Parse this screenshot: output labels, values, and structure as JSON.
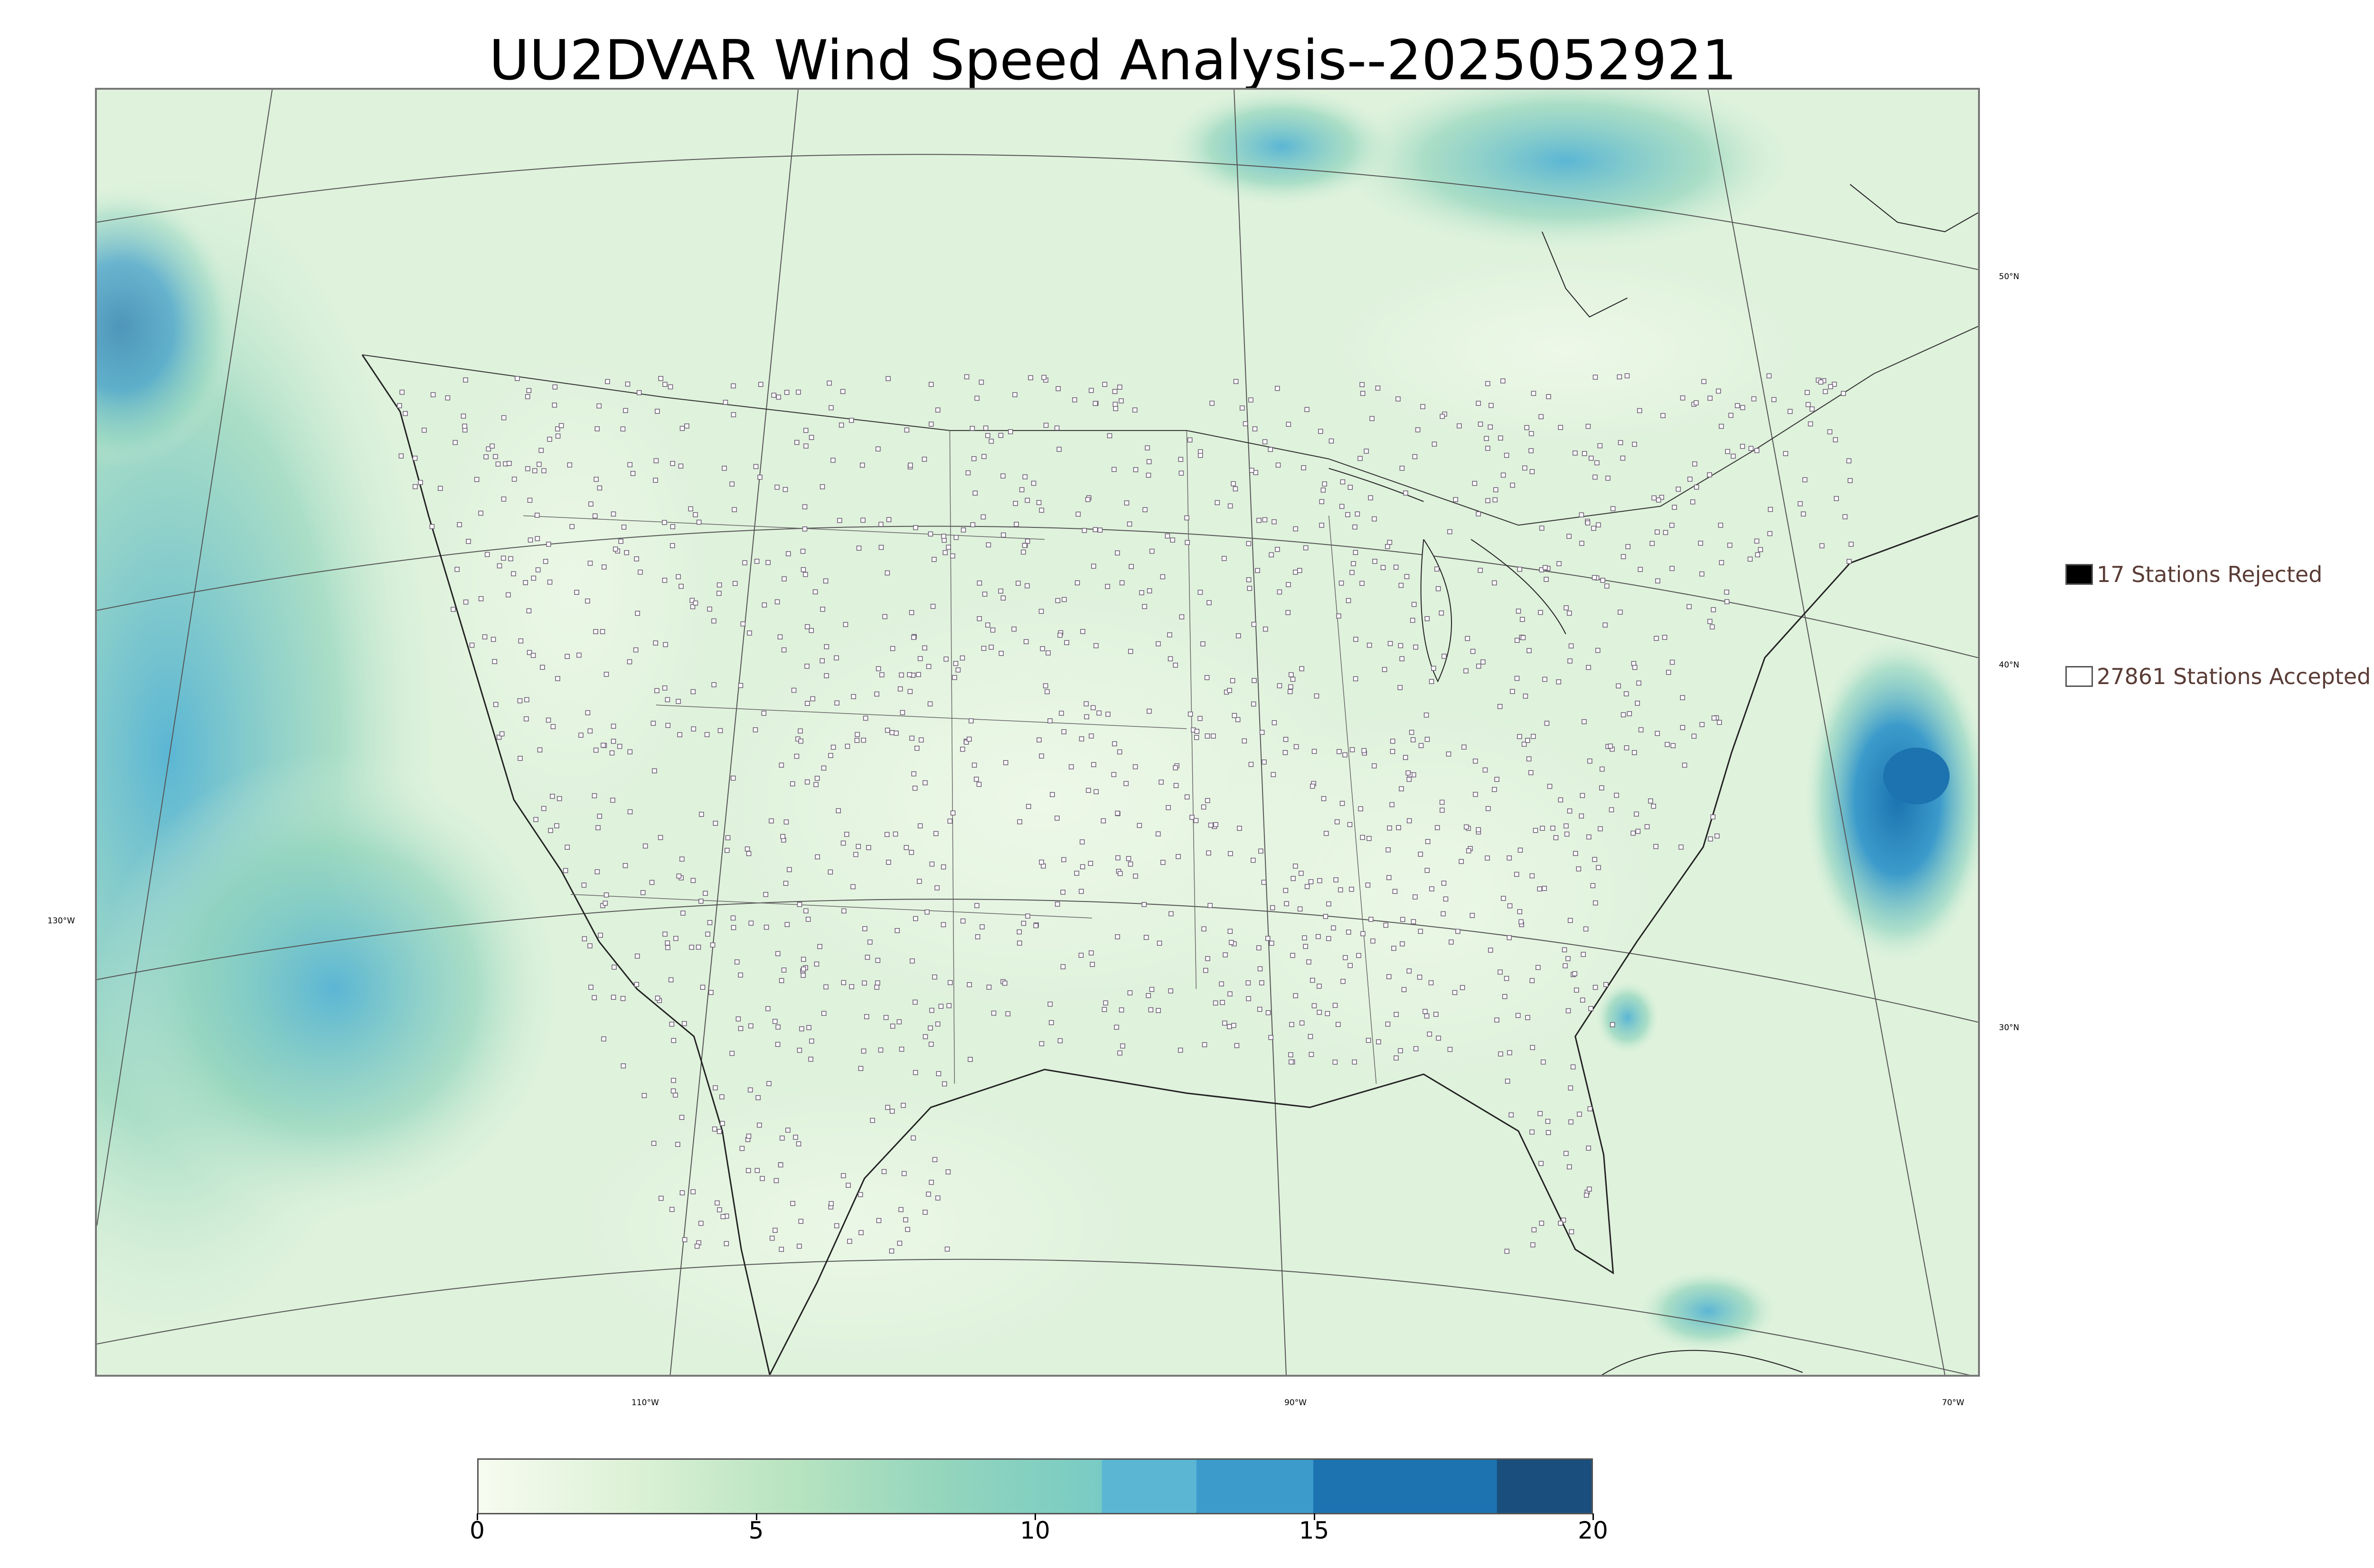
{
  "title": "UU2DVAR Wind Speed Analysis--2025052921",
  "graticule": {
    "lat_labels": [
      "50°N",
      "40°N",
      "30°N"
    ],
    "lon_labels": [
      "130°W",
      "110°W",
      "90°W",
      "70°W"
    ]
  },
  "legend": {
    "rejected": {
      "label": "17 Stations Rejected",
      "color": "#000000"
    },
    "accepted": {
      "label": "27861 Stations Accepted",
      "color": "#ffffff"
    }
  },
  "colorbar": {
    "ticks": [
      "0",
      "5",
      "10",
      "15",
      "20"
    ],
    "min": 0,
    "max": 20,
    "bins": [
      {
        "from": 0,
        "to": 11.2,
        "gradient": [
          "#f7fcf0",
          "#dcf1d6",
          "#b8e4c0",
          "#93d5bd",
          "#78cbc4"
        ]
      },
      {
        "from": 11.2,
        "to": 12.9,
        "color": "#5bb6d4"
      },
      {
        "from": 12.9,
        "to": 15.0,
        "color": "#3c9bcb"
      },
      {
        "from": 15.0,
        "to": 18.3,
        "color": "#1c73b0"
      },
      {
        "from": 18.3,
        "to": 20.0,
        "color": "#1a4e7c"
      }
    ]
  },
  "colors": {
    "land_base": "#dff2dc",
    "ocean_wind": "#8dd3c0",
    "strong_wind": "#3f9fd0",
    "station_outline": "#6b5a74",
    "border": "#333333"
  }
}
